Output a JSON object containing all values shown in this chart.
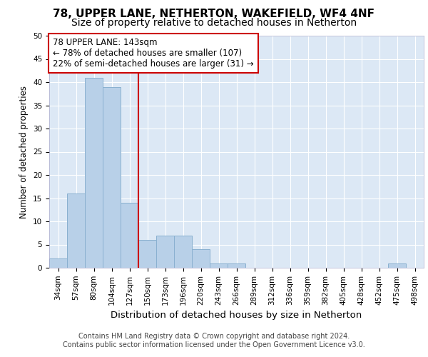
{
  "title1": "78, UPPER LANE, NETHERTON, WAKEFIELD, WF4 4NF",
  "title2": "Size of property relative to detached houses in Netherton",
  "xlabel": "Distribution of detached houses by size in Netherton",
  "ylabel": "Number of detached properties",
  "categories": [
    "34sqm",
    "57sqm",
    "80sqm",
    "104sqm",
    "127sqm",
    "150sqm",
    "173sqm",
    "196sqm",
    "220sqm",
    "243sqm",
    "266sqm",
    "289sqm",
    "312sqm",
    "336sqm",
    "359sqm",
    "382sqm",
    "405sqm",
    "428sqm",
    "452sqm",
    "475sqm",
    "498sqm"
  ],
  "values": [
    2,
    16,
    41,
    39,
    14,
    6,
    7,
    7,
    4,
    1,
    1,
    0,
    0,
    0,
    0,
    0,
    0,
    0,
    0,
    1,
    0
  ],
  "bar_color": "#b8d0e8",
  "bar_edge_color": "#8ab0d0",
  "background_color": "#ffffff",
  "plot_bg_color": "#dce8f5",
  "grid_color": "#ffffff",
  "annotation_box_text": "78 UPPER LANE: 143sqm\n← 78% of detached houses are smaller (107)\n22% of semi-detached houses are larger (31) →",
  "annotation_box_color": "#ffffff",
  "annotation_box_edge_color": "#cc0000",
  "vline_color": "#cc0000",
  "ylim": [
    0,
    50
  ],
  "yticks": [
    0,
    5,
    10,
    15,
    20,
    25,
    30,
    35,
    40,
    45,
    50
  ],
  "footer1": "Contains HM Land Registry data © Crown copyright and database right 2024.",
  "footer2": "Contains public sector information licensed under the Open Government Licence v3.0.",
  "title1_fontsize": 11,
  "title2_fontsize": 10,
  "xlabel_fontsize": 9.5,
  "ylabel_fontsize": 8.5,
  "tick_fontsize": 7.5,
  "annotation_fontsize": 8.5,
  "footer_fontsize": 7
}
